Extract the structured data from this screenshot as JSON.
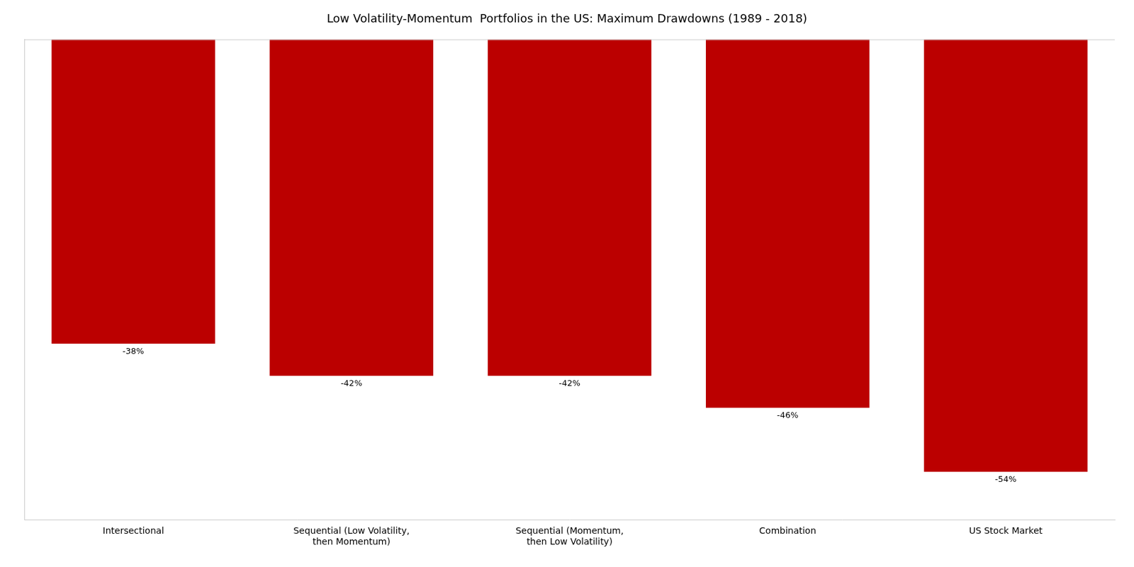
{
  "chart_data": {
    "type": "bar",
    "title": "Low Volatility-Momentum  Portfolios in the US: Maximum Drawdowns (1989 - 2018)",
    "categories": [
      "Intersectional",
      "Sequential (Low Volatility,\nthen Momentum)",
      "Sequential (Momentum,\nthen Low Volatility)",
      "Combination",
      "US Stock Market"
    ],
    "values": [
      -38,
      -42,
      -42,
      -46,
      -54
    ],
    "value_labels": [
      "-38%",
      "-42%",
      "-42%",
      "-46%",
      "-54%"
    ],
    "data_labels": true,
    "color": "#bb0000",
    "ylim": [
      -60,
      0
    ],
    "grid": false,
    "tick_labels": "x"
  }
}
